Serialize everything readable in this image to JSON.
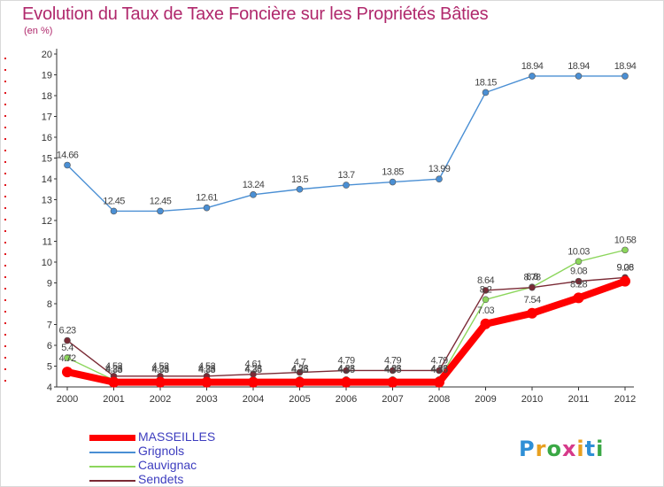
{
  "header": {
    "title": "Evolution du Taux de Taxe Foncière sur les Propriétés Bâties",
    "subtitle": "(en %)"
  },
  "logo": {
    "text": "Proxiti",
    "letters": [
      "P",
      "r",
      "o",
      "x",
      "i",
      "t",
      "i"
    ],
    "colors": [
      "#2f8fd6",
      "#e8a020",
      "#3aa845",
      "#d63a8a",
      "#e8a020",
      "#2f8fd6",
      "#3aa845"
    ]
  },
  "chart_data": {
    "type": "line",
    "title": "Evolution du Taux de Taxe Foncière sur les Propriétés Bâties",
    "ylabel": "(en %)",
    "xlabel": "",
    "x": [
      "2000",
      "2001",
      "2002",
      "2003",
      "2004",
      "2005",
      "2006",
      "2007",
      "2008",
      "2009",
      "2010",
      "2011",
      "2012"
    ],
    "ylim": [
      4,
      20
    ],
    "yticks": [
      "4",
      "5",
      "6",
      "7",
      "8",
      "9",
      "10",
      "11",
      "12",
      "13",
      "14",
      "15",
      "16",
      "17",
      "18",
      "19",
      "20"
    ],
    "grid": false,
    "legend_position": "bottom-left",
    "series": [
      {
        "name": "MASSEILLES",
        "color": "#ff0000",
        "values": [
          4.72,
          4.23,
          4.23,
          4.23,
          4.23,
          4.23,
          4.23,
          4.23,
          4.23,
          7.03,
          7.54,
          8.28,
          9.08
        ],
        "labels": [
          "4.72",
          "4.23",
          "4.23",
          "4.23",
          "4.23",
          "4.23",
          "4.23",
          "4.23",
          "4.23",
          "7.03",
          "7.54",
          "8.28",
          "9.08"
        ]
      },
      {
        "name": "Grignols",
        "color": "#4a8fd4",
        "values": [
          14.66,
          12.45,
          12.45,
          12.61,
          13.24,
          13.5,
          13.7,
          13.85,
          13.99,
          18.15,
          18.94,
          18.94,
          18.94
        ],
        "labels": [
          "14.66",
          "12.45",
          "12.45",
          "12.61",
          "13.24",
          "13.5",
          "13.7",
          "13.85",
          "13.99",
          "18.15",
          "18.94",
          "18.94",
          "18.94"
        ]
      },
      {
        "name": "Cauvignac",
        "color": "#8cd65c",
        "values": [
          5.4,
          4.33,
          4.33,
          4.33,
          4.35,
          4.35,
          4.35,
          4.35,
          4.35,
          8.2,
          8.8,
          10.03,
          10.58
        ],
        "labels": [
          "5.4",
          "4.33",
          "4.33",
          "4.33",
          "4.35",
          "4.35",
          "4.35",
          "4.35",
          "4.35",
          "8.2",
          "8.8",
          "10.03",
          "10.58"
        ]
      },
      {
        "name": "Sendets",
        "color": "#7a2a35",
        "values": [
          6.23,
          4.52,
          4.52,
          4.52,
          4.61,
          4.7,
          4.79,
          4.79,
          4.79,
          8.64,
          8.78,
          9.08,
          9.26
        ],
        "labels": [
          "6.23",
          "4.52",
          "4.52",
          "4.52",
          "4.61",
          "4.7",
          "4.79",
          "4.79",
          "4.79",
          "8.64",
          "8.78",
          "9.08",
          "9.26"
        ]
      }
    ]
  }
}
